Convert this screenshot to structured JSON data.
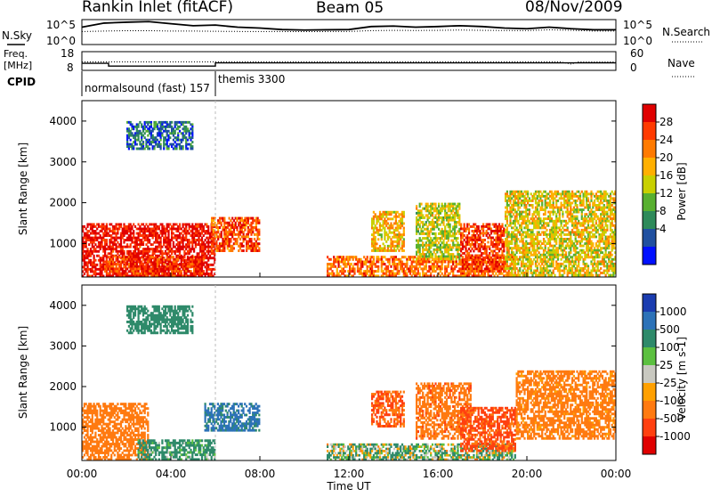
{
  "header": {
    "station": "Rankin Inlet (fitACF)",
    "beam": "Beam 05",
    "date": "08/Nov/2009"
  },
  "top_panel": {
    "left_label": "N.Sky",
    "right_label": "N.Search",
    "left_ticks": [
      "10^5",
      "10^0"
    ],
    "right_ticks": [
      "10^5",
      "10^0"
    ]
  },
  "freq_panel": {
    "left_label_line1": "Freq.",
    "left_label_line2": "[MHz]",
    "right_label": "Nave",
    "left_ticks": [
      "18",
      "8"
    ],
    "right_ticks": [
      "60",
      "0"
    ]
  },
  "cpid": {
    "label": "CPID",
    "segments": [
      {
        "name": "normalsound (fast) 157",
        "start_hour": 0,
        "end_hour": 6
      },
      {
        "name": "themis 3300",
        "start_hour": 6,
        "end_hour": 24
      }
    ]
  },
  "x_axis": {
    "label": "Time UT",
    "ticks": [
      "00:00",
      "04:00",
      "08:00",
      "12:00",
      "16:00",
      "20:00",
      "00:00"
    ]
  },
  "power_colorbar": {
    "label": "Power [dB]",
    "ticks": [
      "28",
      "24",
      "20",
      "16",
      "12",
      "8",
      "4"
    ],
    "colors": [
      "#e00000",
      "#ff3a00",
      "#ff7a00",
      "#ffb000",
      "#c8d000",
      "#58b030",
      "#2e8a5a",
      "#2050a0",
      "#0010ff"
    ]
  },
  "velocity_colorbar": {
    "label": "Velocity [m s-1]",
    "ticks": [
      "1000",
      "500",
      "100",
      "25",
      "-25",
      "-100",
      "-500",
      "-1000"
    ],
    "colors": [
      "#1a3cb0",
      "#2c72b8",
      "#2e8a6a",
      "#5cc040",
      "#c8c8c0",
      "#ffa000",
      "#ff7a10",
      "#ff4010",
      "#e00000"
    ]
  },
  "chart_data": [
    {
      "type": "line",
      "title": "",
      "ylabel": "N.Sky",
      "y_scale": "log",
      "ylim": [
        1,
        100000
      ],
      "series": [
        {
          "name": "N.Sky",
          "x": [
            0,
            1,
            2,
            3,
            4,
            5,
            6,
            7,
            8,
            9,
            10,
            11,
            12,
            13,
            14,
            15,
            16,
            17,
            18,
            19,
            20,
            21,
            22,
            23,
            24
          ],
          "values": [
            3000,
            20000,
            30000,
            40000,
            15000,
            6000,
            8000,
            3000,
            2000,
            1000,
            800,
            900,
            1000,
            4000,
            5000,
            3000,
            4000,
            6000,
            4000,
            2000,
            1500,
            3000,
            1500,
            900,
            900
          ]
        },
        {
          "name": "N.Search",
          "x": [
            0,
            1,
            2,
            3,
            4,
            5,
            6,
            7,
            8,
            9,
            10,
            11,
            12,
            13,
            14,
            15,
            16,
            17,
            18,
            19,
            20,
            21,
            22,
            23,
            24
          ],
          "values": [
            400,
            500,
            600,
            600,
            500,
            500,
            450,
            420,
            400,
            400,
            380,
            400,
            420,
            600,
            700,
            650,
            700,
            800,
            700,
            650,
            600,
            900,
            700,
            500,
            500
          ]
        }
      ]
    },
    {
      "type": "line",
      "ylabel": "Freq. [MHz]",
      "ylim": [
        8,
        18
      ],
      "series": [
        {
          "name": "Freq.",
          "x": [
            0,
            1.2,
            1.2,
            6,
            6,
            24
          ],
          "values": [
            11.8,
            11.8,
            10.3,
            10.3,
            12,
            12
          ]
        },
        {
          "name": "Nave",
          "x": [
            0,
            21.5,
            22,
            22.3,
            24
          ],
          "values": [
            27,
            27,
            20,
            27,
            27
          ]
        }
      ]
    },
    {
      "type": "heatmap",
      "title": "Power [dB]",
      "xlabel": "Time UT",
      "ylabel": "Slant Range [km]",
      "x_range_hours": [
        0,
        24
      ],
      "ylim": [
        180,
        4500
      ],
      "colorbar_range": [
        2,
        32
      ],
      "regions": [
        {
          "t0": 0.0,
          "t1": 6.0,
          "r0": 180,
          "r1": 1500,
          "level": 0.95
        },
        {
          "t0": 1.0,
          "t1": 5.5,
          "r0": 180,
          "r1": 700,
          "level": 0.85
        },
        {
          "t0": 5.8,
          "t1": 8.0,
          "r0": 800,
          "r1": 1650,
          "level": 0.8
        },
        {
          "t0": 11.0,
          "t1": 19.5,
          "r0": 180,
          "r1": 700,
          "level": 0.75
        },
        {
          "t0": 13.0,
          "t1": 14.5,
          "r0": 800,
          "r1": 1800,
          "level": 0.6
        },
        {
          "t0": 15.0,
          "t1": 17.0,
          "r0": 600,
          "r1": 2000,
          "level": 0.5
        },
        {
          "t0": 17.0,
          "t1": 19.0,
          "r0": 300,
          "r1": 1500,
          "level": 0.85
        },
        {
          "t0": 19.0,
          "t1": 24.0,
          "r0": 200,
          "r1": 2300,
          "level": 0.55
        },
        {
          "t0": 2.0,
          "t1": 5.0,
          "r0": 3300,
          "r1": 4000,
          "level": 0.2
        }
      ]
    },
    {
      "type": "heatmap",
      "title": "Velocity [m s-1]",
      "xlabel": "Time UT",
      "ylabel": "Slant Range [km]",
      "x_range_hours": [
        0,
        24
      ],
      "ylim": [
        180,
        4500
      ],
      "colorbar_range": [
        -1000,
        1000
      ],
      "regions": [
        {
          "t0": 0.0,
          "t1": 3.0,
          "r0": 180,
          "r1": 1600,
          "value": -300
        },
        {
          "t0": 2.5,
          "t1": 6.0,
          "r0": 180,
          "r1": 700,
          "value": 200
        },
        {
          "t0": 5.5,
          "t1": 8.0,
          "r0": 900,
          "r1": 1600,
          "value": 600
        },
        {
          "t0": 11.0,
          "t1": 19.5,
          "r0": 180,
          "r1": 600,
          "value": 80
        },
        {
          "t0": 13.0,
          "t1": 14.5,
          "r0": 1000,
          "r1": 1900,
          "value": -500
        },
        {
          "t0": 15.0,
          "t1": 17.5,
          "r0": 700,
          "r1": 2100,
          "value": -350
        },
        {
          "t0": 17.0,
          "t1": 19.5,
          "r0": 400,
          "r1": 1500,
          "value": -600
        },
        {
          "t0": 19.5,
          "t1": 24.0,
          "r0": 700,
          "r1": 2400,
          "value": -250
        },
        {
          "t0": 2.0,
          "t1": 5.0,
          "r0": 3300,
          "r1": 4000,
          "value": 300
        }
      ]
    }
  ]
}
